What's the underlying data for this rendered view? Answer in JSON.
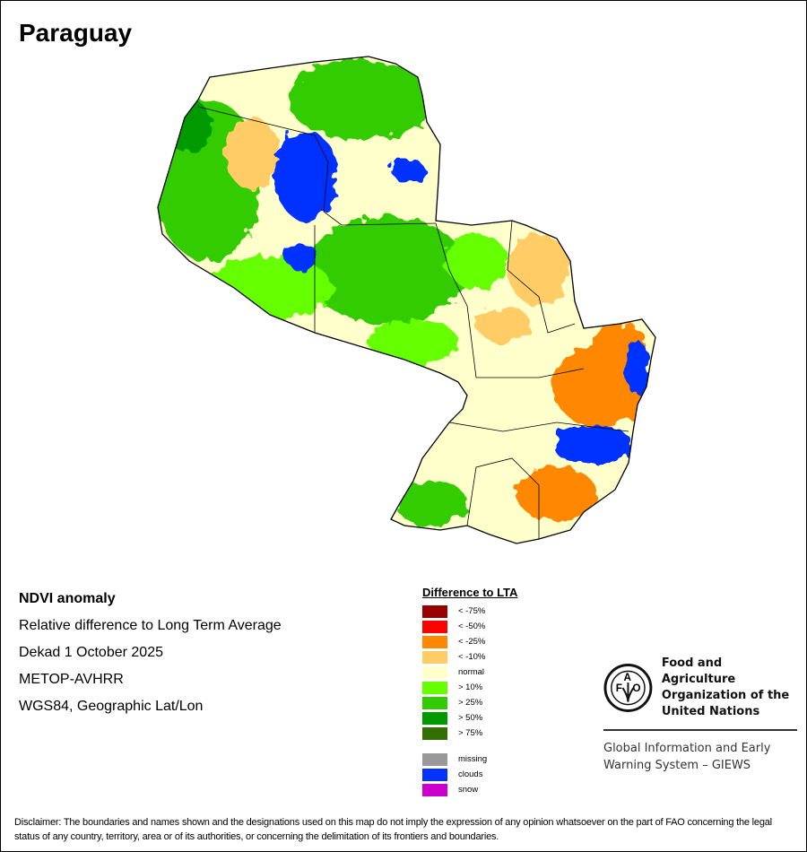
{
  "title": "Paraguay",
  "info": {
    "product": "NDVI anomaly",
    "description": "Relative difference to Long Term Average",
    "period": "Dekad 1 October 2025",
    "sensor": "METOP-AVHRR",
    "projection": "WGS84, Geographic Lat/Lon"
  },
  "legend": {
    "title": "Difference to LTA",
    "items": [
      {
        "label": "< -75%",
        "color": "#990000"
      },
      {
        "label": "< -50%",
        "color": "#ff0000"
      },
      {
        "label": "< -25%",
        "color": "#ff8800"
      },
      {
        "label": "< -10%",
        "color": "#ffcc66"
      },
      {
        "label": "normal",
        "color": "#ffffcc"
      },
      {
        "label": "> 10%",
        "color": "#66ff00"
      },
      {
        "label": "> 25%",
        "color": "#33cc00"
      },
      {
        "label": "> 50%",
        "color": "#009900"
      },
      {
        "label": "> 75%",
        "color": "#336e00"
      }
    ],
    "extra": [
      {
        "label": "missing",
        "color": "#999999"
      },
      {
        "label": "clouds",
        "color": "#0033ff"
      },
      {
        "label": "snow",
        "color": "#cc00cc"
      }
    ]
  },
  "logo": {
    "letters": "FAO FIAT PANIS",
    "org_line1": "Food and Agriculture",
    "org_line2": "Organization of the",
    "org_line3": "United Nations",
    "giews_line1": "Global Information and Early",
    "giews_line2": "Warning System – GIEWS"
  },
  "disclaimer": "Disclaimer: The boundaries and names shown and the designations used on this map do not imply the expression of any opinion whatsoever on the part of FAO concerning the legal status of any country, territory, area or of its authorities, or concerning the delimitation of its frontiers and boundaries."
}
